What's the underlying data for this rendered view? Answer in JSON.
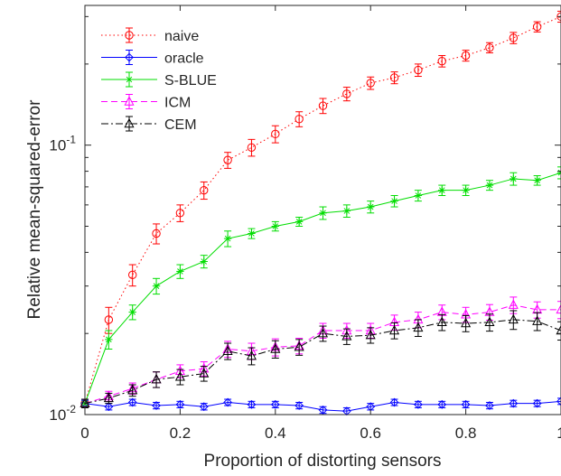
{
  "chart_data": {
    "type": "line",
    "title": "",
    "xlabel": "Proportion of distorting sensors",
    "ylabel": "Relative mean-squared-error",
    "xlim": [
      0,
      1
    ],
    "ylim": [
      0.01,
      0.33
    ],
    "yscale": "log",
    "grid": false,
    "legend_position": "top-left",
    "x_ticks": [
      {
        "value": 0,
        "label": "0"
      },
      {
        "value": 0.2,
        "label": "0.2"
      },
      {
        "value": 0.4,
        "label": "0.4"
      },
      {
        "value": 0.6,
        "label": "0.6"
      },
      {
        "value": 0.8,
        "label": "0.8"
      },
      {
        "value": 1,
        "label": "1"
      }
    ],
    "y_ticks": [
      {
        "value": 0.01,
        "base": "10",
        "exp": "-2"
      },
      {
        "value": 0.1,
        "base": "10",
        "exp": "-1"
      }
    ],
    "x": [
      0,
      0.05,
      0.1,
      0.15,
      0.2,
      0.25,
      0.3,
      0.35,
      0.4,
      0.45,
      0.5,
      0.55,
      0.6,
      0.65,
      0.7,
      0.75,
      0.8,
      0.85,
      0.9,
      0.95,
      1
    ],
    "series": [
      {
        "name": "naive",
        "color": "#ff0000",
        "line_style": "dotted",
        "marker": "circle",
        "values": [
          0.011,
          0.0225,
          0.033,
          0.047,
          0.056,
          0.068,
          0.088,
          0.098,
          0.11,
          0.125,
          0.14,
          0.155,
          0.17,
          0.178,
          0.19,
          0.205,
          0.215,
          0.23,
          0.25,
          0.275,
          0.3
        ],
        "errors": [
          0.0004,
          0.0025,
          0.003,
          0.004,
          0.004,
          0.005,
          0.006,
          0.007,
          0.008,
          0.008,
          0.009,
          0.009,
          0.009,
          0.009,
          0.01,
          0.01,
          0.01,
          0.01,
          0.012,
          0.012,
          0.014
        ]
      },
      {
        "name": "oracle",
        "color": "#0000ff",
        "line_style": "solid",
        "marker": "diamond",
        "values": [
          0.011,
          0.0107,
          0.0111,
          0.0108,
          0.0109,
          0.0107,
          0.0111,
          0.0109,
          0.0109,
          0.0108,
          0.0104,
          0.0103,
          0.0107,
          0.0111,
          0.0109,
          0.0109,
          0.0109,
          0.0108,
          0.011,
          0.011,
          0.0112
        ],
        "errors": [
          0.0003,
          0.0003,
          0.0003,
          0.0003,
          0.0003,
          0.0003,
          0.0003,
          0.0003,
          0.0003,
          0.0003,
          0.0003,
          0.0003,
          0.0003,
          0.0003,
          0.0003,
          0.0003,
          0.0003,
          0.0003,
          0.0003,
          0.0003,
          0.0003
        ]
      },
      {
        "name": "S-BLUE",
        "color": "#00dd00",
        "line_style": "solid",
        "marker": "star",
        "values": [
          0.011,
          0.019,
          0.024,
          0.03,
          0.034,
          0.037,
          0.045,
          0.047,
          0.05,
          0.052,
          0.056,
          0.057,
          0.059,
          0.062,
          0.065,
          0.068,
          0.068,
          0.071,
          0.075,
          0.074,
          0.079
        ],
        "errors": [
          0.0004,
          0.0015,
          0.0015,
          0.002,
          0.002,
          0.002,
          0.003,
          0.002,
          0.002,
          0.002,
          0.003,
          0.003,
          0.003,
          0.003,
          0.003,
          0.003,
          0.003,
          0.003,
          0.004,
          0.003,
          0.004
        ]
      },
      {
        "name": "ICM",
        "color": "#ff00ff",
        "line_style": "dashed",
        "marker": "triangle",
        "values": [
          0.011,
          0.0117,
          0.0125,
          0.0135,
          0.0145,
          0.0148,
          0.0175,
          0.0172,
          0.0178,
          0.018,
          0.0205,
          0.0205,
          0.0205,
          0.022,
          0.0225,
          0.024,
          0.0235,
          0.024,
          0.0255,
          0.0245,
          0.0245
        ],
        "errors": [
          0.0004,
          0.0005,
          0.0006,
          0.0009,
          0.0008,
          0.0009,
          0.0012,
          0.0012,
          0.0013,
          0.0012,
          0.0013,
          0.0013,
          0.0013,
          0.0014,
          0.0015,
          0.0015,
          0.0015,
          0.0016,
          0.0018,
          0.0017,
          0.0018
        ]
      },
      {
        "name": "CEM",
        "color": "#000000",
        "line_style": "dashdot",
        "marker": "triangle",
        "values": [
          0.011,
          0.0115,
          0.0123,
          0.0135,
          0.0138,
          0.0142,
          0.0172,
          0.0165,
          0.0175,
          0.0178,
          0.02,
          0.0195,
          0.0197,
          0.0205,
          0.021,
          0.022,
          0.0218,
          0.022,
          0.0225,
          0.0222,
          0.0205
        ],
        "errors": [
          0.0004,
          0.0005,
          0.0006,
          0.0009,
          0.0009,
          0.0009,
          0.0012,
          0.0012,
          0.0013,
          0.0012,
          0.0013,
          0.0013,
          0.0013,
          0.0014,
          0.0015,
          0.0015,
          0.0015,
          0.0016,
          0.0018,
          0.0017,
          0.0016
        ]
      }
    ]
  }
}
